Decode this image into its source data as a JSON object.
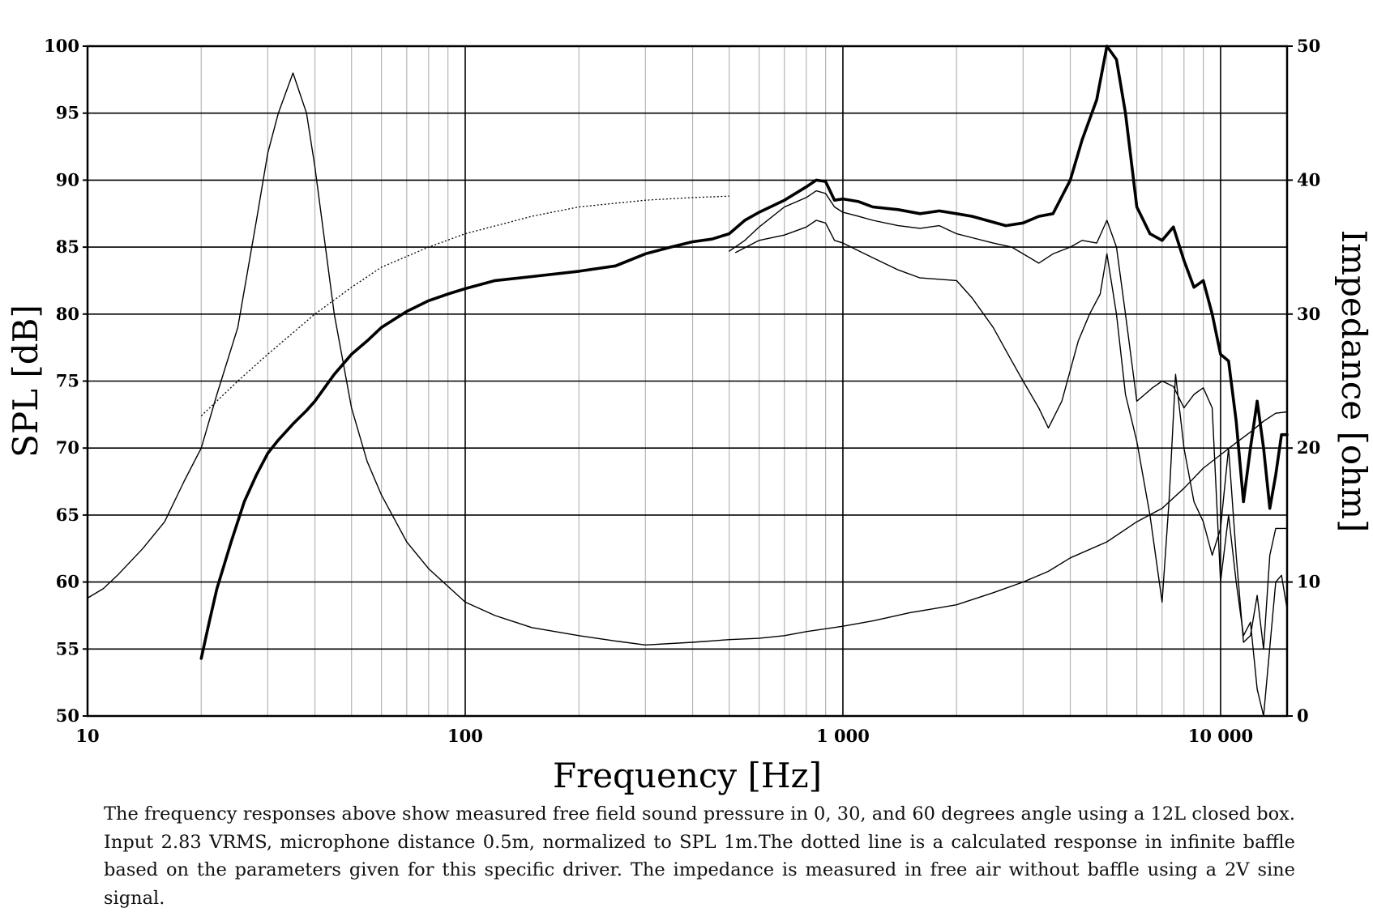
{
  "caption": "The frequency responses above show measured free field sound pressure in 0, 30, and 60 degrees angle using a 12L closed box. Input 2.83 VRMS, microphone distance 0.5m, normalized to SPL 1m.The dotted line is a calculated response in infinite baffle based on the parameters given for this specific driver. The impedance is measured in free air without baffle using a 2V sine signal.",
  "chart_data": {
    "type": "line",
    "xlabel": "Frequency [Hz]",
    "ylabel": "SPL [dB]",
    "y2label": "Impedance [ohm]",
    "xscale": "log",
    "xlim": [
      10,
      15000
    ],
    "ylim": [
      50,
      100
    ],
    "y2lim": [
      0,
      50
    ],
    "grid": true,
    "x_ticks": [
      {
        "value": 10,
        "label": "10"
      },
      {
        "value": 100,
        "label": "100"
      },
      {
        "value": 1000,
        "label": "1 000"
      },
      {
        "value": 10000,
        "label": "10 000"
      }
    ],
    "y_ticks": [
      {
        "value": 100,
        "label": "100"
      },
      {
        "value": 95,
        "label": "95"
      },
      {
        "value": 90,
        "label": "90"
      },
      {
        "value": 85,
        "label": "85"
      },
      {
        "value": 80,
        "label": "80"
      },
      {
        "value": 75,
        "label": "75"
      },
      {
        "value": 70,
        "label": "70"
      },
      {
        "value": 65,
        "label": "65"
      },
      {
        "value": 60,
        "label": "60"
      },
      {
        "value": 55,
        "label": "55"
      },
      {
        "value": 50,
        "label": "50"
      }
    ],
    "y2_ticks": [
      {
        "value": 50,
        "label": "50"
      },
      {
        "value": 40,
        "label": "40"
      },
      {
        "value": 30,
        "label": "30"
      },
      {
        "value": 20,
        "label": "20"
      },
      {
        "value": 10,
        "label": "10"
      },
      {
        "value": 0,
        "label": "0"
      }
    ],
    "series": [
      {
        "style": "thick",
        "axis": "left",
        "points": [
          [
            20,
            54.3
          ],
          [
            21,
            57
          ],
          [
            22,
            59.5
          ],
          [
            24,
            63
          ],
          [
            26,
            66
          ],
          [
            28,
            68
          ],
          [
            30,
            69.6
          ],
          [
            32,
            70.6
          ],
          [
            35,
            71.8
          ],
          [
            38,
            72.8
          ],
          [
            40,
            73.5
          ],
          [
            45,
            75.5
          ],
          [
            50,
            77
          ],
          [
            55,
            78
          ],
          [
            60,
            79
          ],
          [
            70,
            80.2
          ],
          [
            80,
            81
          ],
          [
            90,
            81.5
          ],
          [
            100,
            81.9
          ],
          [
            120,
            82.5
          ],
          [
            150,
            82.8
          ],
          [
            200,
            83.2
          ],
          [
            250,
            83.6
          ],
          [
            300,
            84.5
          ],
          [
            350,
            85
          ],
          [
            400,
            85.4
          ],
          [
            450,
            85.6
          ],
          [
            500,
            86
          ],
          [
            550,
            87
          ],
          [
            600,
            87.6
          ],
          [
            700,
            88.5
          ],
          [
            800,
            89.5
          ],
          [
            850,
            90
          ],
          [
            900,
            89.9
          ],
          [
            950,
            88.5
          ],
          [
            1000,
            88.6
          ],
          [
            1100,
            88.4
          ],
          [
            1200,
            88
          ],
          [
            1400,
            87.8
          ],
          [
            1600,
            87.5
          ],
          [
            1800,
            87.7
          ],
          [
            2000,
            87.5
          ],
          [
            2200,
            87.3
          ],
          [
            2400,
            87
          ],
          [
            2700,
            86.6
          ],
          [
            3000,
            86.8
          ],
          [
            3300,
            87.3
          ],
          [
            3600,
            87.5
          ],
          [
            4000,
            90
          ],
          [
            4300,
            93
          ],
          [
            4700,
            96
          ],
          [
            5000,
            100
          ],
          [
            5300,
            99
          ],
          [
            5600,
            95
          ],
          [
            6000,
            88
          ],
          [
            6500,
            86
          ],
          [
            7000,
            85.5
          ],
          [
            7500,
            86.5
          ],
          [
            8000,
            84
          ],
          [
            8500,
            82
          ],
          [
            9000,
            82.5
          ],
          [
            9500,
            80
          ],
          [
            10000,
            77
          ],
          [
            10500,
            76.5
          ],
          [
            11000,
            72
          ],
          [
            11500,
            66
          ],
          [
            12000,
            70
          ],
          [
            12500,
            73.5
          ],
          [
            13000,
            70
          ],
          [
            13500,
            65.5
          ],
          [
            14000,
            68
          ],
          [
            14500,
            71
          ],
          [
            15000,
            71
          ]
        ]
      },
      {
        "style": "thin",
        "axis": "left",
        "points": [
          [
            500,
            84.7
          ],
          [
            550,
            85.5
          ],
          [
            600,
            86.5
          ],
          [
            700,
            88
          ],
          [
            800,
            88.7
          ],
          [
            850,
            89.2
          ],
          [
            900,
            89
          ],
          [
            950,
            88
          ],
          [
            1000,
            87.6
          ],
          [
            1100,
            87.3
          ],
          [
            1200,
            87
          ],
          [
            1400,
            86.6
          ],
          [
            1600,
            86.4
          ],
          [
            1800,
            86.6
          ],
          [
            2000,
            86
          ],
          [
            2200,
            85.7
          ],
          [
            2500,
            85.3
          ],
          [
            2800,
            85
          ],
          [
            3000,
            84.5
          ],
          [
            3300,
            83.8
          ],
          [
            3600,
            84.5
          ],
          [
            4000,
            85
          ],
          [
            4300,
            85.5
          ],
          [
            4700,
            85.3
          ],
          [
            5000,
            87
          ],
          [
            5300,
            85
          ],
          [
            5600,
            80
          ],
          [
            6000,
            73.5
          ],
          [
            6300,
            74
          ],
          [
            6600,
            74.5
          ],
          [
            7000,
            75
          ],
          [
            7500,
            74.6
          ],
          [
            8000,
            73
          ],
          [
            8500,
            74
          ],
          [
            9000,
            74.5
          ],
          [
            9500,
            73
          ],
          [
            10000,
            60
          ],
          [
            10500,
            65
          ],
          [
            11000,
            60
          ],
          [
            11500,
            56
          ],
          [
            12000,
            57
          ],
          [
            12500,
            52
          ],
          [
            13000,
            50
          ],
          [
            14000,
            60
          ],
          [
            14500,
            60.5
          ],
          [
            15000,
            58
          ]
        ]
      },
      {
        "style": "thin",
        "axis": "left",
        "points": [
          [
            520,
            84.6
          ],
          [
            600,
            85.5
          ],
          [
            700,
            85.9
          ],
          [
            800,
            86.5
          ],
          [
            850,
            87
          ],
          [
            900,
            86.8
          ],
          [
            950,
            85.5
          ],
          [
            1000,
            85.3
          ],
          [
            1200,
            84.2
          ],
          [
            1400,
            83.3
          ],
          [
            1600,
            82.7
          ],
          [
            1800,
            82.6
          ],
          [
            2000,
            82.5
          ],
          [
            2200,
            81.2
          ],
          [
            2500,
            79
          ],
          [
            2800,
            76.5
          ],
          [
            3000,
            75
          ],
          [
            3300,
            73
          ],
          [
            3500,
            71.5
          ],
          [
            3800,
            73.5
          ],
          [
            4200,
            78
          ],
          [
            4500,
            80
          ],
          [
            4800,
            81.5
          ],
          [
            5000,
            84.5
          ],
          [
            5300,
            80
          ],
          [
            5600,
            74
          ],
          [
            6000,
            70.5
          ],
          [
            6500,
            65
          ],
          [
            7000,
            58.5
          ],
          [
            7300,
            66
          ],
          [
            7600,
            75.5
          ],
          [
            8000,
            70
          ],
          [
            8500,
            66
          ],
          [
            9000,
            64.5
          ],
          [
            9500,
            62
          ],
          [
            10000,
            64
          ],
          [
            10500,
            70
          ],
          [
            11000,
            62
          ],
          [
            11500,
            55.5
          ],
          [
            12000,
            56
          ],
          [
            12500,
            59
          ],
          [
            13000,
            55
          ],
          [
            13500,
            62
          ],
          [
            14000,
            64
          ],
          [
            15000,
            64
          ]
        ]
      },
      {
        "style": "dotted",
        "axis": "left",
        "points": [
          [
            20,
            72.4
          ],
          [
            25,
            75
          ],
          [
            30,
            77
          ],
          [
            40,
            80
          ],
          [
            50,
            82
          ],
          [
            60,
            83.5
          ],
          [
            80,
            85
          ],
          [
            100,
            86
          ],
          [
            150,
            87.3
          ],
          [
            200,
            88
          ],
          [
            300,
            88.5
          ],
          [
            400,
            88.7
          ],
          [
            500,
            88.8
          ]
        ]
      },
      {
        "style": "thin",
        "axis": "right",
        "points": [
          [
            10,
            8.8
          ],
          [
            11,
            9.5
          ],
          [
            12,
            10.5
          ],
          [
            14,
            12.5
          ],
          [
            16,
            14.5
          ],
          [
            18,
            17.5
          ],
          [
            20,
            20
          ],
          [
            22,
            24
          ],
          [
            25,
            29
          ],
          [
            28,
            37
          ],
          [
            30,
            42
          ],
          [
            32,
            45
          ],
          [
            35,
            48
          ],
          [
            38,
            45
          ],
          [
            40,
            41
          ],
          [
            45,
            30
          ],
          [
            50,
            23
          ],
          [
            55,
            19
          ],
          [
            60,
            16.5
          ],
          [
            70,
            13
          ],
          [
            80,
            11
          ],
          [
            100,
            8.5
          ],
          [
            120,
            7.5
          ],
          [
            150,
            6.6
          ],
          [
            200,
            6
          ],
          [
            250,
            5.6
          ],
          [
            300,
            5.3
          ],
          [
            400,
            5.5
          ],
          [
            500,
            5.7
          ],
          [
            600,
            5.8
          ],
          [
            700,
            6
          ],
          [
            800,
            6.3
          ],
          [
            1000,
            6.7
          ],
          [
            1200,
            7.1
          ],
          [
            1500,
            7.7
          ],
          [
            2000,
            8.3
          ],
          [
            2500,
            9.2
          ],
          [
            3000,
            10
          ],
          [
            3500,
            10.8
          ],
          [
            4000,
            11.8
          ],
          [
            5000,
            13
          ],
          [
            6000,
            14.5
          ],
          [
            7000,
            15.5
          ],
          [
            8000,
            17
          ],
          [
            9000,
            18.5
          ],
          [
            10000,
            19.5
          ],
          [
            11000,
            20.4
          ],
          [
            12000,
            21.2
          ],
          [
            13000,
            22
          ],
          [
            14000,
            22.6
          ],
          [
            15000,
            22.7
          ]
        ]
      }
    ]
  }
}
